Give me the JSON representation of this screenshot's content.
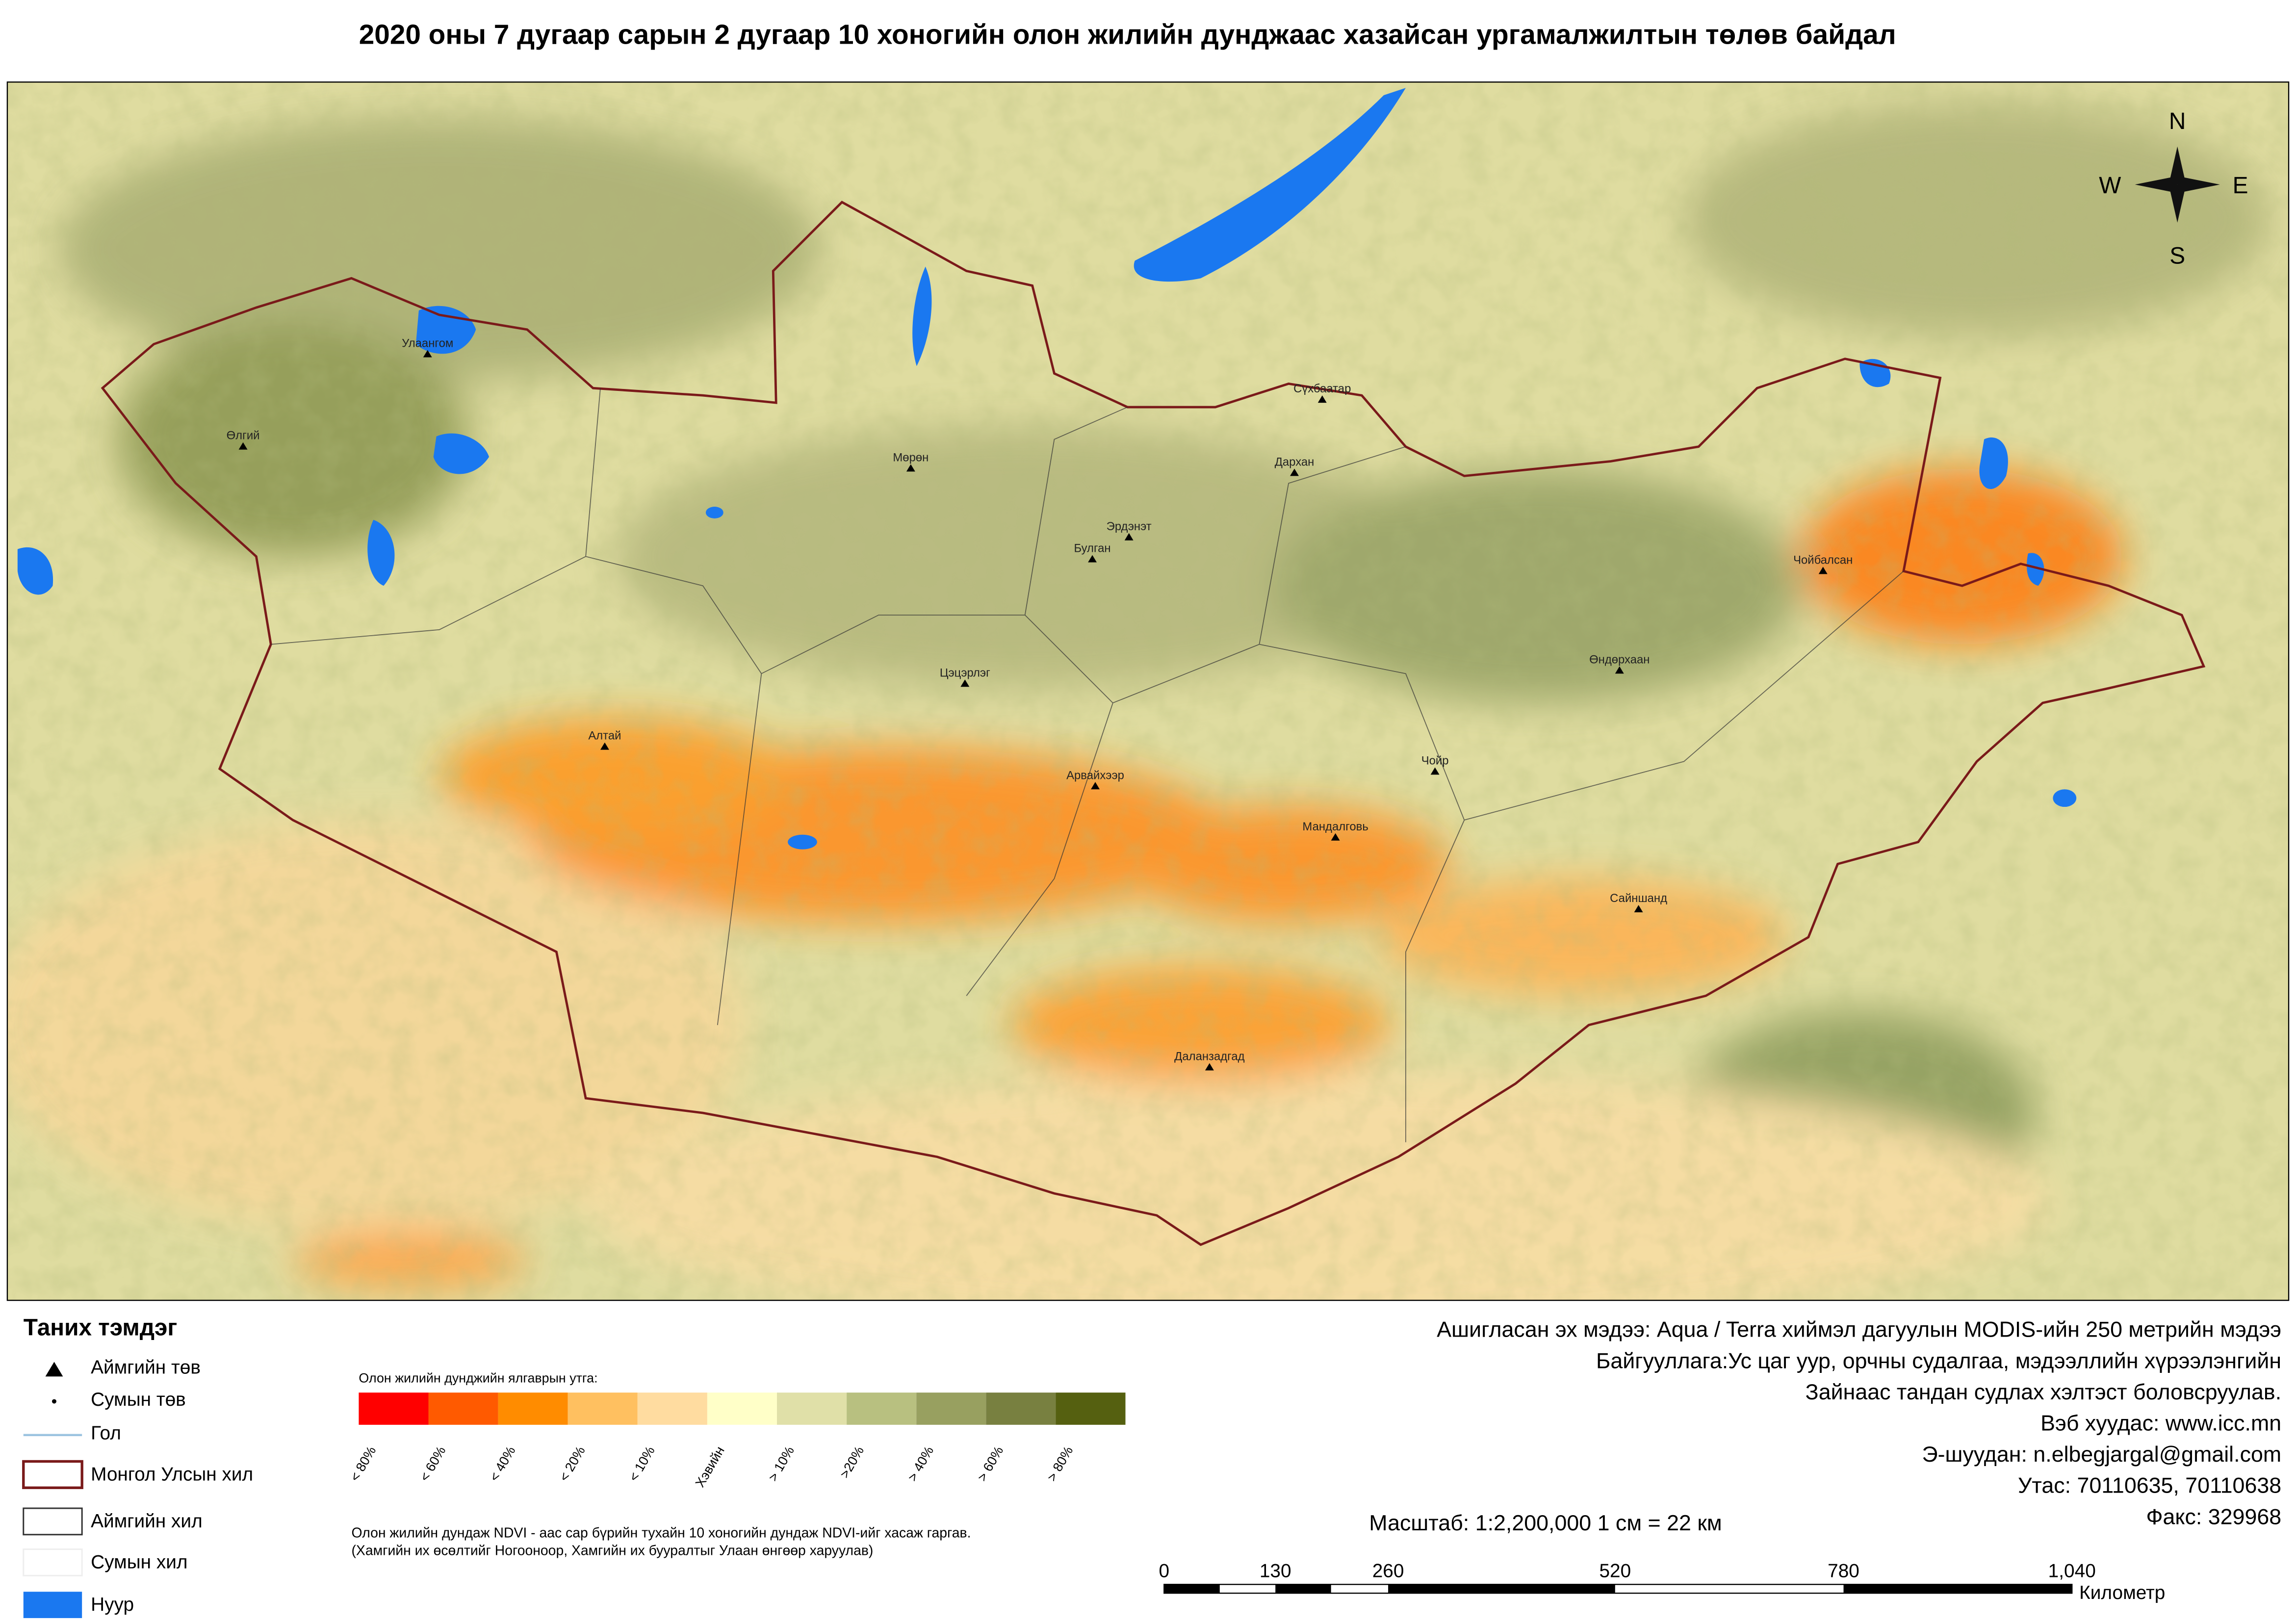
{
  "title": "2020 оны 7 дугаар сарын 2 дугаар 10 хоногийн олон жилийн дунджаас хазайсан ургамалжилтын төлөв байдал",
  "map": {
    "cities": [
      "Улаангом",
      "Өлгий",
      "Мөрөн",
      "Сүхбаатар",
      "Дархан",
      "Эрдэнэт",
      "Булган",
      "Чойбалсан",
      "Өндөрхаан",
      "Цэцэрлэг",
      "Алтай",
      "Арвайхээр",
      "Чойр",
      "Мандалговь",
      "Сайншанд",
      "Даланзадгад"
    ],
    "compass": {
      "n": "N",
      "w": "W",
      "e": "E",
      "s": "S"
    }
  },
  "legend": {
    "title": "Таних тэмдэг",
    "items": [
      "Аймгийн төв",
      "Сумын төв",
      "Гол",
      "Монгол Улсын хил",
      "Аймгийн хил",
      "Сумын хил",
      "Нуур"
    ]
  },
  "color_scale": {
    "title": "Олон жилийн дунджийн ялгаврын утга:",
    "classes": [
      {
        "label": "< 80%",
        "color": "#ff0000"
      },
      {
        "label": "< 60%",
        "color": "#ff5a00"
      },
      {
        "label": "< 40%",
        "color": "#ff8c00"
      },
      {
        "label": "< 20%",
        "color": "#ffc060"
      },
      {
        "label": "< 10%",
        "color": "#ffdca0"
      },
      {
        "label": "Хэвийн",
        "color": "#ffffc8"
      },
      {
        "label": "> 10%",
        "color": "#e0e0a8"
      },
      {
        "label": ">20%",
        "color": "#b8c080"
      },
      {
        "label": "> 40%",
        "color": "#98a060"
      },
      {
        "label": "> 60%",
        "color": "#788040"
      },
      {
        "label": "> 80%",
        "color": "#556010"
      }
    ],
    "note": [
      "Олон жилийн дундаж NDVI - аас сар бүрийн тухайн 10 хоногийн дундаж NDVI-ийг хасаж гаргав.",
      "(Хамгийн их өсөлтийг Ногооноор,  Хамгийн их бууралтыг Улаан өнгөөр харуулав)"
    ]
  },
  "info": [
    "Ашигласан эх мэдээ: Aqua / Terra хиймэл дагуулын MODIS-ийн 250 метрийн мэдээ",
    "Байгууллага:Ус цаг уур, орчны судалгаа, мэдээллийн хүрээлэнгийн",
    "Зайнаас тандан судлах хэлтэст боловсруулав.",
    "Вэб хуудас: www.icc.mn",
    "Э-шуудан: n.elbegjargal@gmail.com",
    "Утас: 70110635, 70110638",
    "Факс: 329968"
  ],
  "scale": {
    "text": "Масштаб: 1:2,200,000   1 см = 22 км",
    "ticks": [
      "0",
      "130",
      "260",
      "520",
      "780",
      "1,040"
    ],
    "unit": "Километр"
  }
}
